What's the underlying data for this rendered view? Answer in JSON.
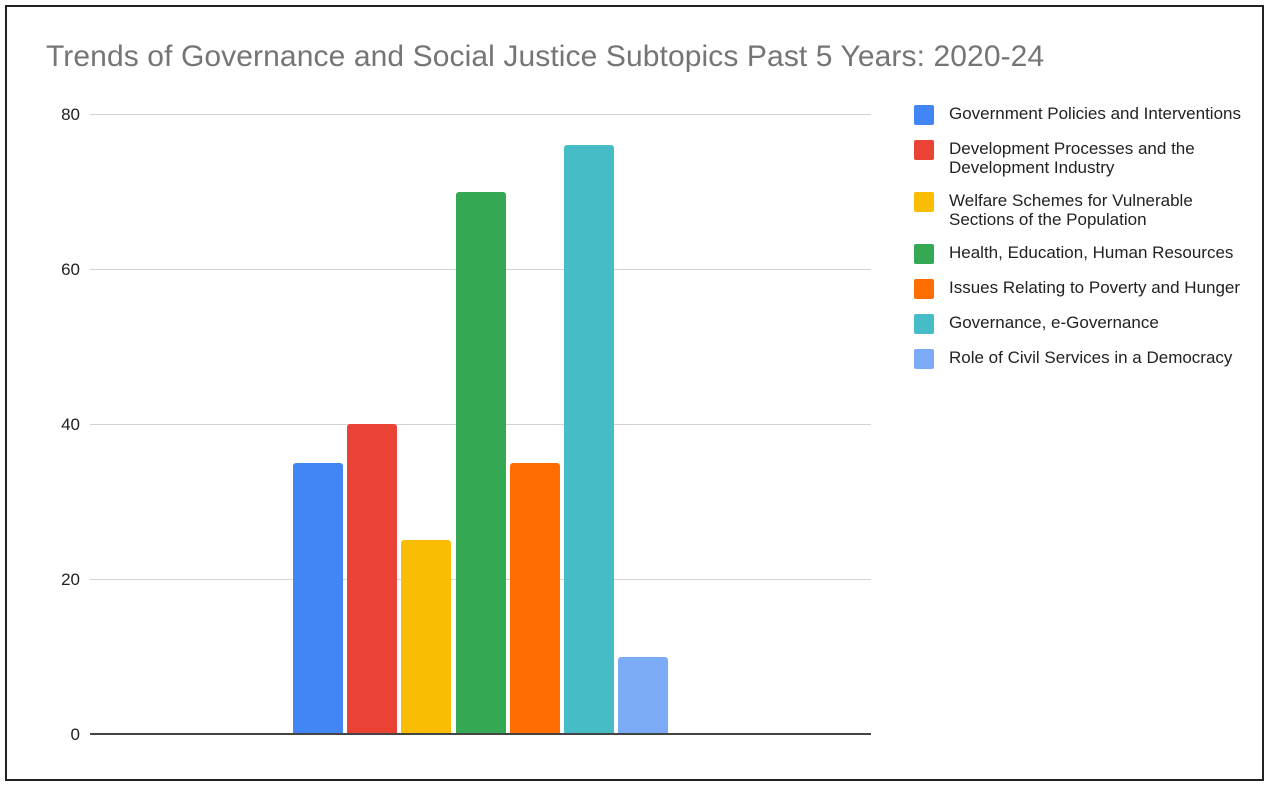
{
  "title": "Trends of Governance and Social Justice Subtopics Past 5 Years: 2020-24",
  "y_ticks": [
    "80",
    "60",
    "40",
    "20",
    "0"
  ],
  "legend": [
    {
      "label": "Government Policies and Interventions",
      "color": "#4285F4"
    },
    {
      "label": "Development Processes and the Development Industry",
      "color": "#EA4335"
    },
    {
      "label": "Welfare Schemes for Vulnerable Sections of the Population",
      "color": "#FBBC04"
    },
    {
      "label": "Health, Education, Human Resources",
      "color": "#34A853"
    },
    {
      "label": "Issues Relating to Poverty and Hunger",
      "color": "#FF6D01"
    },
    {
      "label": "Governance, e-Governance",
      "color": "#46BDC6"
    },
    {
      "label": "Role of Civil Services in a Democracy",
      "color": "#7BAAF7"
    }
  ],
  "chart_data": {
    "type": "bar",
    "title": "Trends of Governance and Social Justice Subtopics Past 5 Years: 2020-24",
    "xlabel": "",
    "ylabel": "",
    "ylim": [
      0,
      80
    ],
    "yticks": [
      0,
      20,
      40,
      60,
      80
    ],
    "grid": true,
    "legend_position": "right",
    "categories": [
      ""
    ],
    "series": [
      {
        "name": "Government Policies and Interventions",
        "values": [
          35
        ],
        "color": "#4285F4"
      },
      {
        "name": "Development Processes and the Development Industry",
        "values": [
          40
        ],
        "color": "#EA4335"
      },
      {
        "name": "Welfare Schemes for Vulnerable Sections of the Population",
        "values": [
          25
        ],
        "color": "#FBBC04"
      },
      {
        "name": "Health, Education, Human Resources",
        "values": [
          70
        ],
        "color": "#34A853"
      },
      {
        "name": "Issues Relating to Poverty and Hunger",
        "values": [
          35
        ],
        "color": "#FF6D01"
      },
      {
        "name": "Governance, e-Governance",
        "values": [
          76
        ],
        "color": "#46BDC6"
      },
      {
        "name": "Role of Civil Services in a Democracy",
        "values": [
          10
        ],
        "color": "#7BAAF7"
      }
    ]
  }
}
